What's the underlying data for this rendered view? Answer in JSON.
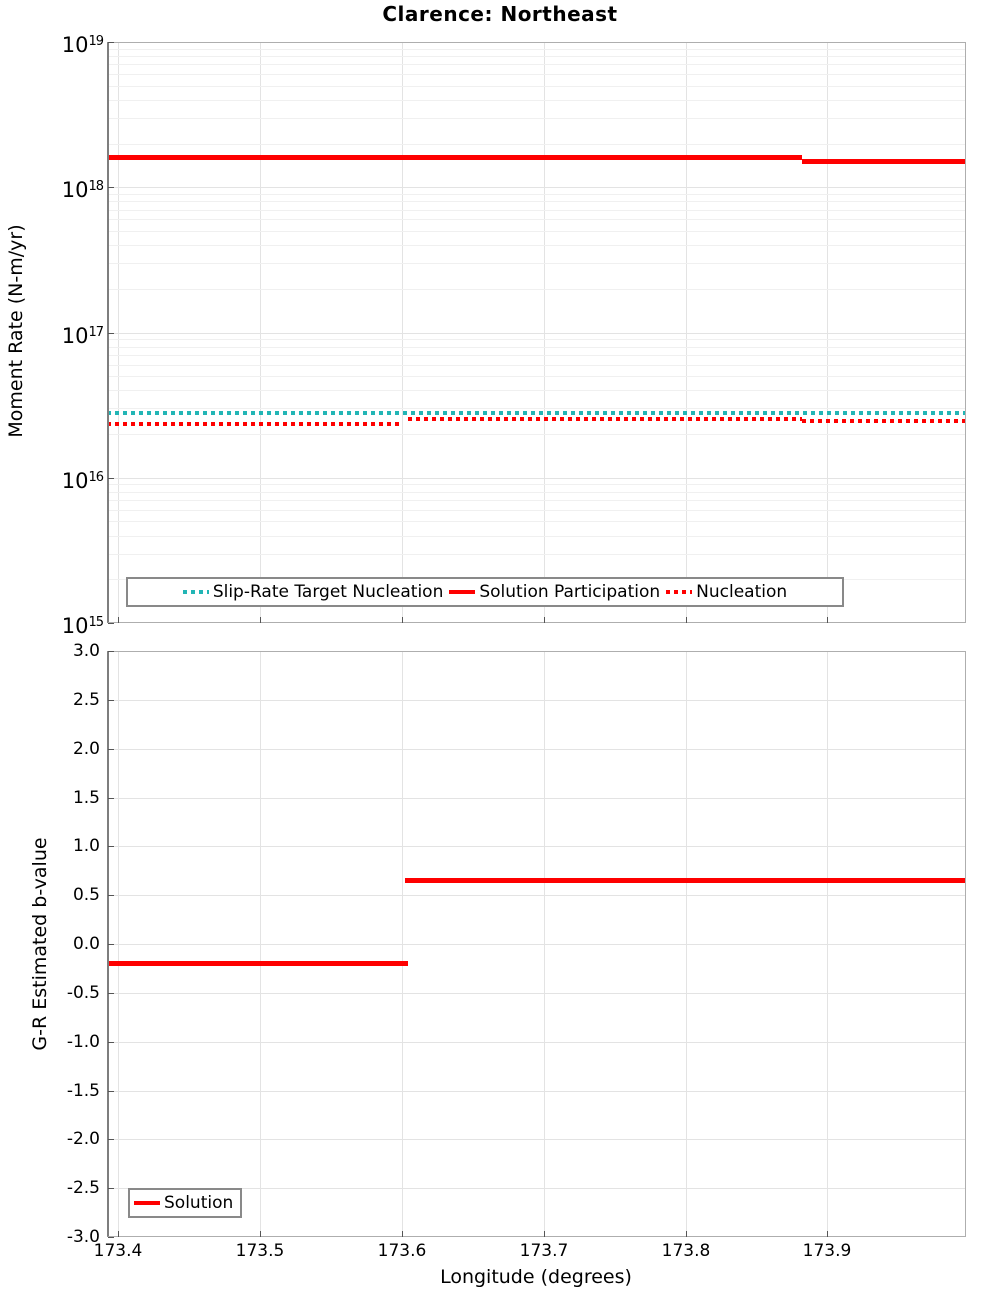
{
  "title": "Clarence: Northeast",
  "colors": {
    "red": "#fe0000",
    "teal": "#22b5b5"
  },
  "x_axis": {
    "label": "Longitude (degrees)",
    "tick_labels": [
      "173.4",
      "173.5",
      "173.6",
      "173.7",
      "173.8",
      "173.9"
    ]
  },
  "chart_data": [
    {
      "type": "line",
      "title": "Clarence: Northeast",
      "xlabel": "Longitude (degrees)",
      "ylabel": "Moment Rate (N-m/yr)",
      "yscale": "log",
      "xlim": [
        173.392,
        173.997
      ],
      "ylim": [
        1000000000000000.0,
        1e+19
      ],
      "xticks": [
        173.4,
        173.5,
        173.6,
        173.7,
        173.8,
        173.9
      ],
      "xtick_labels": [
        "173.4",
        "173.5",
        "173.6",
        "173.7",
        "173.8",
        "173.9"
      ],
      "ytick_exponents": [
        19,
        18,
        17,
        16,
        15
      ],
      "grid": "on, log minor gridlines",
      "legend_position": "inside lower center, boxed",
      "series": [
        {
          "name": "Slip-Rate Target Nucleation",
          "color": "#22b5b5",
          "style": "dotted",
          "segments": [
            {
              "x": [
                173.392,
                173.997
              ],
              "y": 2.8e+16
            }
          ]
        },
        {
          "name": "Solution Participation",
          "color": "#fe0000",
          "style": "solid",
          "segments": [
            {
              "x": [
                173.392,
                173.882
              ],
              "y": 1.6e+18
            },
            {
              "x": [
                173.882,
                173.997
              ],
              "y": 1.5e+18
            }
          ]
        },
        {
          "name": "Nucleation",
          "color": "#fe0000",
          "style": "dotted",
          "segments": [
            {
              "x": [
                173.392,
                173.6
              ],
              "y": 2.35e+16
            },
            {
              "x": [
                173.604,
                173.882
              ],
              "y": 2.55e+16
            },
            {
              "x": [
                173.882,
                173.997
              ],
              "y": 2.45e+16
            }
          ]
        }
      ]
    },
    {
      "type": "line",
      "title": "",
      "xlabel": "Longitude (degrees)",
      "ylabel": "G-R Estimated b-value",
      "yscale": "linear",
      "xlim": [
        173.392,
        173.997
      ],
      "ylim": [
        -3.0,
        3.0
      ],
      "xticks": [
        173.4,
        173.5,
        173.6,
        173.7,
        173.8,
        173.9
      ],
      "xtick_labels": [
        "173.4",
        "173.5",
        "173.6",
        "173.7",
        "173.8",
        "173.9"
      ],
      "ytick_labels": [
        "3.0",
        "2.5",
        "2.0",
        "1.5",
        "1.0",
        "0.5",
        "0.0",
        "-0.5",
        "-1.0",
        "-1.5",
        "-2.0",
        "-2.5",
        "-3.0"
      ],
      "yticks": [
        3.0,
        2.5,
        2.0,
        1.5,
        1.0,
        0.5,
        0.0,
        -0.5,
        -1.0,
        -1.5,
        -2.0,
        -2.5,
        -3.0
      ],
      "grid": "on",
      "legend_position": "inside lower left, boxed",
      "series": [
        {
          "name": "Solution",
          "color": "#fe0000",
          "style": "solid",
          "segments": [
            {
              "x": [
                173.392,
                173.604
              ],
              "y": -0.2
            },
            {
              "x": [
                173.602,
                173.997
              ],
              "y": 0.65
            }
          ]
        }
      ]
    }
  ]
}
